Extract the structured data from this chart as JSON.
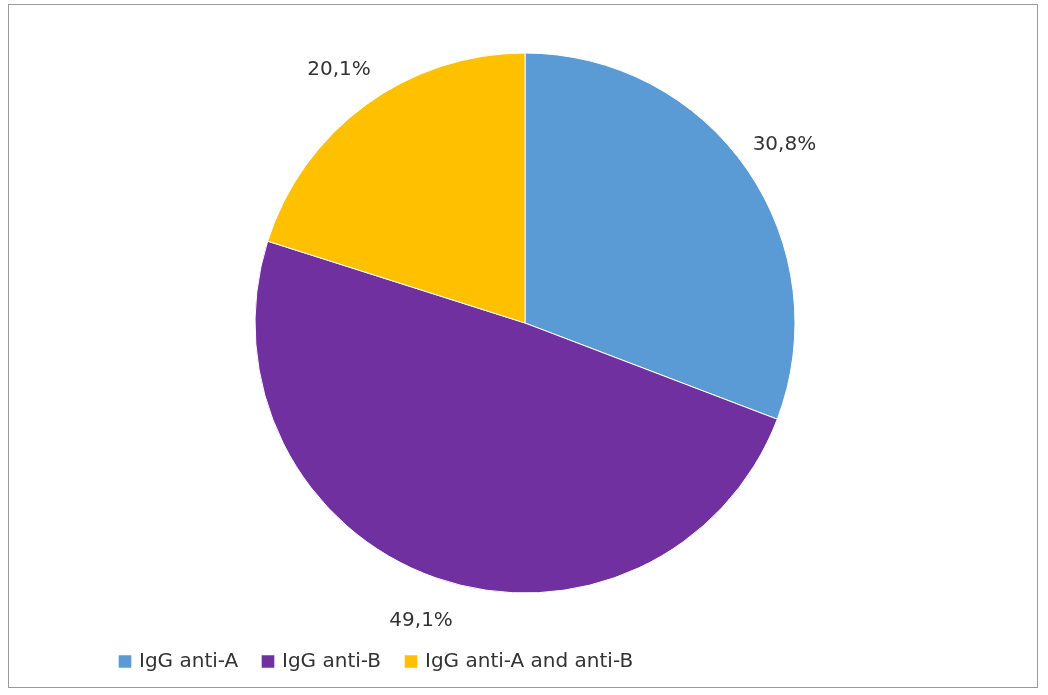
{
  "chart_data": {
    "type": "pie",
    "categories": [
      "IgG anti-A",
      "IgG anti-B",
      "IgG anti-A and anti-B"
    ],
    "values": [
      30.8,
      49.1,
      20.1
    ],
    "colors": [
      "#5b9bd5",
      "#7030a0",
      "#ffc000"
    ],
    "value_labels": [
      "30,8%",
      "49,1%",
      "20,1%"
    ],
    "legend": "bottom"
  }
}
